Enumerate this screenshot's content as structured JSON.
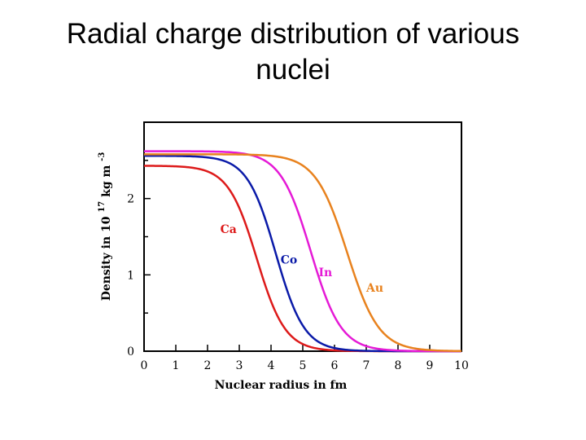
{
  "slide": {
    "title_line1": "Radial charge distribution of various",
    "title_line2": "nuclei"
  },
  "chart_data": {
    "type": "line",
    "title": "",
    "xlabel": "Nuclear radius in fm",
    "ylabel_main": "Density in 10",
    "ylabel_exp": "17",
    "ylabel_unit": "kg m",
    "ylabel_unit_exp": "-3",
    "xlim": [
      0,
      10
    ],
    "ylim": [
      0,
      3
    ],
    "x_ticks": [
      "0",
      "1",
      "2",
      "3",
      "4",
      "5",
      "6",
      "7",
      "8",
      "9",
      "10"
    ],
    "y_ticks": [
      "0",
      "1",
      "2"
    ],
    "grid": false,
    "legend": "inline labels",
    "series": [
      {
        "name": "Ca",
        "color": "#dd1a1a",
        "rho0": 2.43,
        "radius": 3.55,
        "diffuseness": 0.45,
        "label_x": 2.4,
        "label_y": 1.55
      },
      {
        "name": "Co",
        "color": "#0a1aa8",
        "rho0": 2.56,
        "radius": 4.15,
        "diffuseness": 0.45,
        "label_x": 4.3,
        "label_y": 1.15
      },
      {
        "name": "In",
        "color": "#e51ad6",
        "rho0": 2.62,
        "radius": 5.25,
        "diffuseness": 0.48,
        "label_x": 5.5,
        "label_y": 0.98
      },
      {
        "name": "Au",
        "color": "#e8821e",
        "rho0": 2.58,
        "radius": 6.4,
        "diffuseness": 0.5,
        "label_x": 7.0,
        "label_y": 0.78
      }
    ]
  }
}
